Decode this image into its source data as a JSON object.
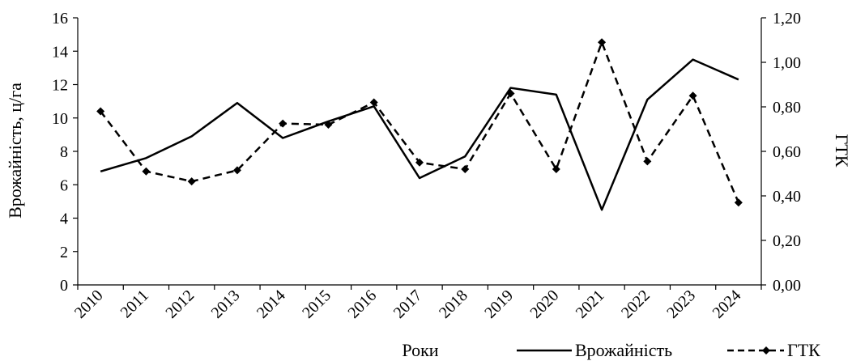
{
  "chart_data": {
    "type": "line",
    "categories": [
      "2010",
      "2011",
      "2012",
      "2013",
      "2014",
      "2015",
      "2016",
      "2017",
      "2018",
      "2019",
      "2020",
      "2021",
      "2022",
      "2023",
      "2024"
    ],
    "series": [
      {
        "name": "Врожайність",
        "axis": "left",
        "style": "solid",
        "color": "#000000",
        "values": [
          6.8,
          7.6,
          8.9,
          10.9,
          8.8,
          9.8,
          10.7,
          6.4,
          7.7,
          11.8,
          11.4,
          4.5,
          11.1,
          13.5,
          12.3
        ]
      },
      {
        "name": "ГТК",
        "axis": "right",
        "style": "dashed-diamond",
        "color": "#000000",
        "values": [
          0.78,
          0.51,
          0.465,
          0.515,
          0.725,
          0.72,
          0.82,
          0.55,
          0.52,
          0.86,
          0.52,
          1.09,
          0.555,
          0.85,
          0.37
        ]
      }
    ],
    "xlabel": "Роки",
    "ylabel": "Врожайність, ц/га",
    "y2label": "ГТК",
    "ylim": [
      0,
      16
    ],
    "y2lim": [
      0,
      1.2
    ],
    "yticks": [
      "0",
      "2",
      "4",
      "6",
      "8",
      "10",
      "12",
      "14",
      "16"
    ],
    "y2ticks": [
      "0,00",
      "0,20",
      "0,40",
      "0,60",
      "0,80",
      "1,00",
      "1,20"
    ],
    "grid": false,
    "legend_position": "bottom-right"
  }
}
